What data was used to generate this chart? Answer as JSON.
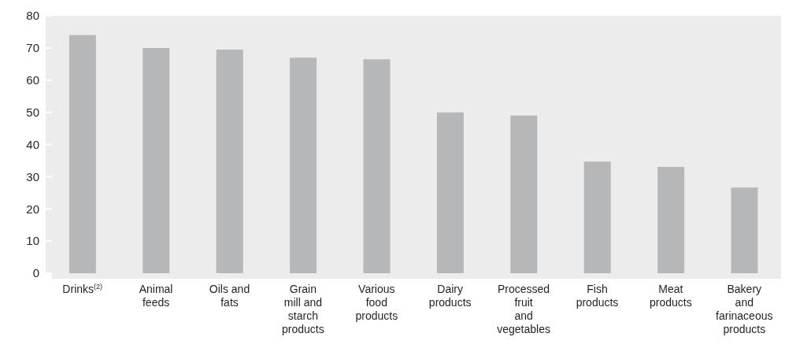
{
  "chart_data": {
    "type": "bar",
    "categories": [
      "Drinks$^{(2)}$",
      "Animal feeds",
      "Oils and fats",
      "Grain mill and starch products",
      "Various food products",
      "Dairy products",
      "Processed fruit and vegetables",
      "Fish products",
      "Meat products",
      "Bakery and farinaceous products"
    ],
    "values": [
      74,
      70,
      69.5,
      67,
      66.5,
      50,
      49,
      34.7,
      33,
      26.6
    ],
    "color": "#b6b7b8",
    "ylim": [
      0,
      80
    ],
    "yticks": [
      0,
      10,
      20,
      30,
      40,
      50,
      60,
      70,
      80
    ],
    "grid": "y"
  }
}
